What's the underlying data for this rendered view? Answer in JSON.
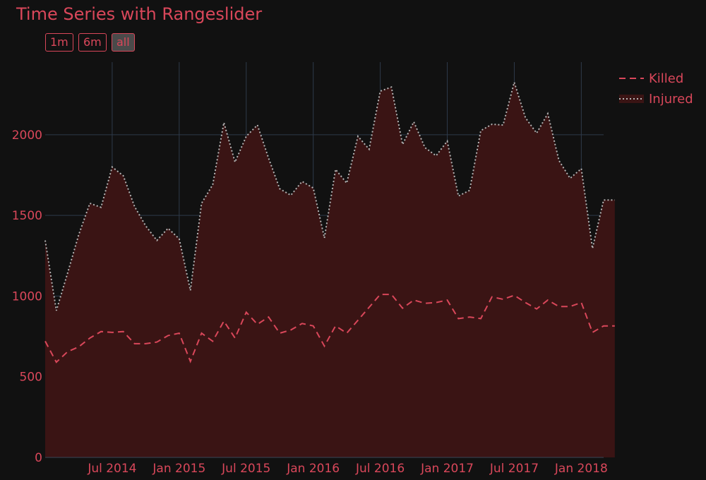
{
  "chart_data": {
    "type": "area",
    "title": "Time Series with Rangeslider",
    "range_buttons": [
      {
        "label": "1m",
        "active": false
      },
      {
        "label": "6m",
        "active": false
      },
      {
        "label": "all",
        "active": true
      }
    ],
    "x": [
      "2014-01",
      "2014-02",
      "2014-03",
      "2014-04",
      "2014-05",
      "2014-06",
      "2014-07",
      "2014-08",
      "2014-09",
      "2014-10",
      "2014-11",
      "2014-12",
      "2015-01",
      "2015-02",
      "2015-03",
      "2015-04",
      "2015-05",
      "2015-06",
      "2015-07",
      "2015-08",
      "2015-09",
      "2015-10",
      "2015-11",
      "2015-12",
      "2016-01",
      "2016-02",
      "2016-03",
      "2016-04",
      "2016-05",
      "2016-06",
      "2016-07",
      "2016-08",
      "2016-09",
      "2016-10",
      "2016-11",
      "2016-12",
      "2017-01",
      "2017-02",
      "2017-03",
      "2017-04",
      "2017-05",
      "2017-06",
      "2017-07",
      "2017-08",
      "2017-09",
      "2017-10",
      "2017-11",
      "2017-12",
      "2018-01",
      "2018-02",
      "2018-03",
      "2018-04"
    ],
    "series": [
      {
        "name": "Killed",
        "style": "dash",
        "color": "#d9475a",
        "values": [
          720,
          590,
          655,
          685,
          740,
          780,
          775,
          780,
          705,
          705,
          715,
          755,
          770,
          595,
          770,
          720,
          845,
          740,
          900,
          825,
          870,
          770,
          790,
          830,
          815,
          690,
          815,
          770,
          850,
          930,
          1010,
          1010,
          925,
          975,
          955,
          960,
          975,
          860,
          870,
          860,
          995,
          980,
          1005,
          960,
          920,
          975,
          935,
          935,
          960,
          775,
          815,
          815
        ]
      },
      {
        "name": "Injured",
        "style": "dot",
        "color": "#b4b4b4",
        "fill": "#3a1414",
        "values": [
          1345,
          910,
          1140,
          1380,
          1575,
          1550,
          1800,
          1745,
          1555,
          1435,
          1345,
          1420,
          1355,
          1035,
          1575,
          1690,
          2075,
          1830,
          1990,
          2060,
          1855,
          1665,
          1625,
          1710,
          1670,
          1360,
          1785,
          1700,
          1990,
          1910,
          2270,
          2295,
          1940,
          2080,
          1920,
          1870,
          1960,
          1620,
          1655,
          2025,
          2065,
          2060,
          2325,
          2105,
          2010,
          2130,
          1840,
          1730,
          1790,
          1295,
          1595,
          1595
        ]
      }
    ],
    "x_ticks": [
      {
        "label": "Jul 2014",
        "date": "2014-07"
      },
      {
        "label": "Jan 2015",
        "date": "2015-01"
      },
      {
        "label": "Jul 2015",
        "date": "2015-07"
      },
      {
        "label": "Jan 2016",
        "date": "2016-01"
      },
      {
        "label": "Jul 2016",
        "date": "2016-07"
      },
      {
        "label": "Jan 2017",
        "date": "2017-01"
      },
      {
        "label": "Jul 2017",
        "date": "2017-07"
      },
      {
        "label": "Jan 2018",
        "date": "2018-01"
      }
    ],
    "y_ticks": [
      0,
      500,
      1000,
      1500,
      2000
    ],
    "ylim": [
      0,
      2450
    ],
    "xlim": [
      "2014-01",
      "2018-03"
    ],
    "grid": true,
    "legend_placement": "top-right"
  }
}
